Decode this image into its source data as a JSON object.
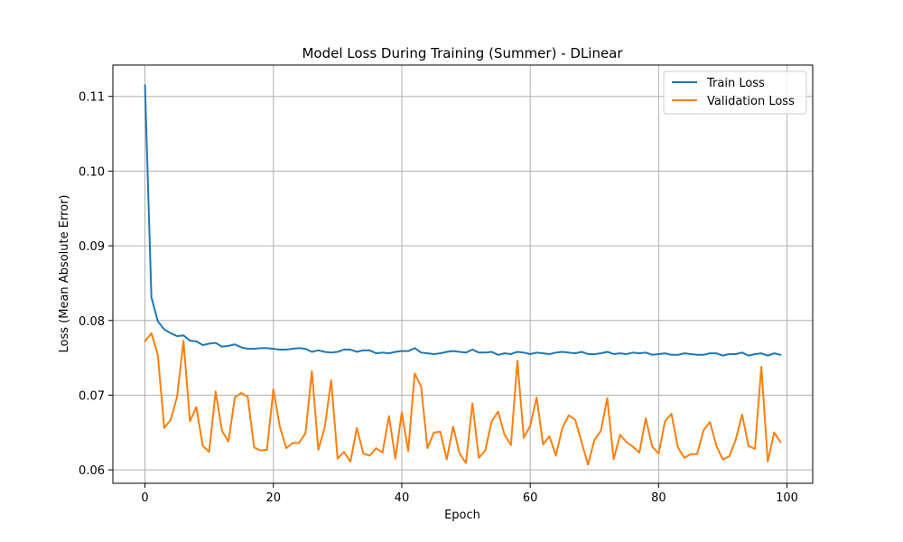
{
  "chart_data": {
    "type": "line",
    "title": "Model Loss During Training (Summer) - DLinear",
    "xlabel": "Epoch",
    "ylabel": "Loss (Mean Absolute Error)",
    "xlim": [
      -5,
      104
    ],
    "ylim": [
      0.0582,
      0.1142
    ],
    "xticks": [
      0,
      20,
      40,
      60,
      80,
      100
    ],
    "yticks": [
      0.06,
      0.07,
      0.08,
      0.09,
      0.1,
      0.11
    ],
    "ytick_labels": [
      "0.06",
      "0.07",
      "0.08",
      "0.09",
      "0.10",
      "0.11"
    ],
    "grid": true,
    "legend_position": "top-right",
    "x": [
      0,
      1,
      2,
      3,
      4,
      5,
      6,
      7,
      8,
      9,
      10,
      11,
      12,
      13,
      14,
      15,
      16,
      17,
      18,
      19,
      20,
      21,
      22,
      23,
      24,
      25,
      26,
      27,
      28,
      29,
      30,
      31,
      32,
      33,
      34,
      35,
      36,
      37,
      38,
      39,
      40,
      41,
      42,
      43,
      44,
      45,
      46,
      47,
      48,
      49,
      50,
      51,
      52,
      53,
      54,
      55,
      56,
      57,
      58,
      59,
      60,
      61,
      62,
      63,
      64,
      65,
      66,
      67,
      68,
      69,
      70,
      71,
      72,
      73,
      74,
      75,
      76,
      77,
      78,
      79,
      80,
      81,
      82,
      83,
      84,
      85,
      86,
      87,
      88,
      89,
      90,
      91,
      92,
      93,
      94,
      95,
      96,
      97,
      98,
      99
    ],
    "series": [
      {
        "name": "Train Loss",
        "color": "#1f77b4",
        "values": [
          0.1115,
          0.0831,
          0.0799,
          0.0788,
          0.0783,
          0.0779,
          0.078,
          0.0773,
          0.0772,
          0.0767,
          0.0769,
          0.077,
          0.0765,
          0.0766,
          0.0768,
          0.0764,
          0.0762,
          0.0762,
          0.0763,
          0.0763,
          0.0762,
          0.0761,
          0.0761,
          0.0762,
          0.0763,
          0.0762,
          0.0758,
          0.076,
          0.0758,
          0.0757,
          0.0758,
          0.0761,
          0.0761,
          0.0758,
          0.076,
          0.076,
          0.0756,
          0.0757,
          0.0756,
          0.0758,
          0.0759,
          0.0759,
          0.0763,
          0.0757,
          0.0756,
          0.0755,
          0.0756,
          0.0758,
          0.0759,
          0.0758,
          0.0757,
          0.0761,
          0.0757,
          0.0757,
          0.0758,
          0.0754,
          0.0756,
          0.0755,
          0.0758,
          0.0757,
          0.0755,
          0.0757,
          0.0756,
          0.0755,
          0.0757,
          0.0758,
          0.0757,
          0.0756,
          0.0758,
          0.0755,
          0.0755,
          0.0756,
          0.0758,
          0.0755,
          0.0756,
          0.0755,
          0.0757,
          0.0756,
          0.0757,
          0.0754,
          0.0755,
          0.0756,
          0.0754,
          0.0754,
          0.0756,
          0.0755,
          0.0754,
          0.0754,
          0.0756,
          0.0756,
          0.0753,
          0.0755,
          0.0755,
          0.0757,
          0.0753,
          0.0755,
          0.0756,
          0.0753,
          0.0756,
          0.0754
        ]
      },
      {
        "name": "Validation Loss",
        "color": "#ff7f0e",
        "values": [
          0.0772,
          0.0783,
          0.0754,
          0.0656,
          0.0667,
          0.0698,
          0.0773,
          0.0665,
          0.0684,
          0.0632,
          0.0624,
          0.0705,
          0.0652,
          0.0638,
          0.0697,
          0.0703,
          0.0698,
          0.063,
          0.0626,
          0.0627,
          0.0708,
          0.0658,
          0.0629,
          0.0636,
          0.0636,
          0.0649,
          0.0732,
          0.0627,
          0.0657,
          0.072,
          0.0615,
          0.0624,
          0.0611,
          0.0656,
          0.0622,
          0.0619,
          0.0629,
          0.0623,
          0.0672,
          0.0615,
          0.0677,
          0.0625,
          0.0729,
          0.0712,
          0.0629,
          0.065,
          0.0651,
          0.0614,
          0.0658,
          0.0622,
          0.0609,
          0.0689,
          0.0616,
          0.0626,
          0.0665,
          0.0678,
          0.0647,
          0.0633,
          0.0746,
          0.0643,
          0.0659,
          0.0697,
          0.0634,
          0.0645,
          0.0619,
          0.0656,
          0.0673,
          0.0667,
          0.0637,
          0.0607,
          0.064,
          0.0652,
          0.0696,
          0.0614,
          0.0647,
          0.0637,
          0.0631,
          0.0623,
          0.0669,
          0.0631,
          0.0622,
          0.0665,
          0.0675,
          0.063,
          0.0616,
          0.0621,
          0.0621,
          0.0653,
          0.0664,
          0.0632,
          0.0614,
          0.0618,
          0.064,
          0.0674,
          0.0632,
          0.0628,
          0.0738,
          0.0611,
          0.065,
          0.0637
        ]
      }
    ]
  }
}
